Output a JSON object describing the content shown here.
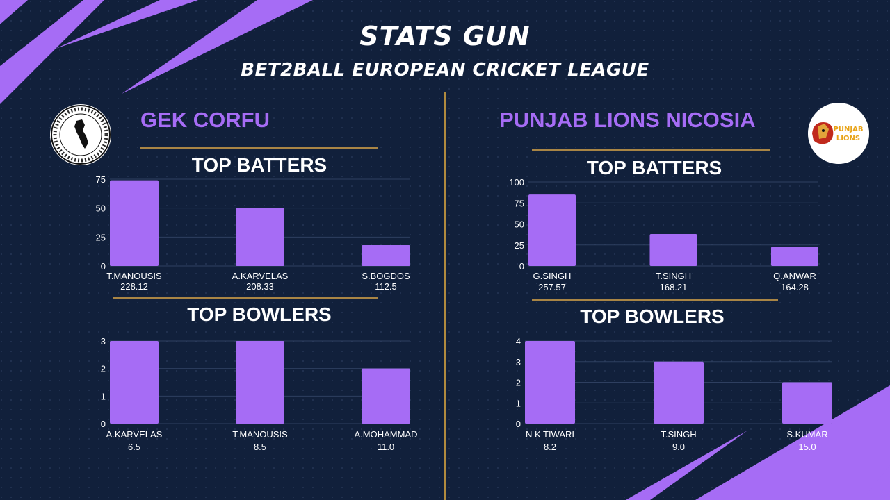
{
  "header": {
    "title": "STATS GUN",
    "subtitle": "BET2BALL EUROPEAN CRICKET LEAGUE"
  },
  "colors": {
    "background": "#11203b",
    "accent": "#a66cf5",
    "bar": "#a66cf5",
    "gold_line": "#a98545",
    "text": "#ffffff"
  },
  "teams": [
    {
      "name": "GEK CORFU",
      "logo": "gek-corfu-logo",
      "logo_text": "ΓΥΜΝΑΣΤΙΚΗ ΕΤΑΙΡΕΙΑ ΚΕΡΚΥΡΑΣ 1893"
    },
    {
      "name": "PUNJAB LIONS NICOSIA",
      "logo": "punjab-lions-logo",
      "logo_text": "PUNJAB LIONS"
    }
  ],
  "chart_data": [
    {
      "type": "bar",
      "title": "TOP BATTERS",
      "team": "GEK CORFU",
      "categories": [
        "T.MANOUSIS",
        "A.KARVELAS",
        "S.BOGDOS"
      ],
      "values": [
        74,
        50,
        18
      ],
      "sublabels": [
        "228.12",
        "208.33",
        "112.5"
      ],
      "yticks": [
        0,
        25,
        50,
        75
      ],
      "ylim": [
        0,
        75
      ],
      "grid": true
    },
    {
      "type": "bar",
      "title": "TOP BOWLERS",
      "team": "GEK CORFU",
      "categories": [
        "A.KARVELAS",
        "T.MANOUSIS",
        "A.MOHAMMAD"
      ],
      "values": [
        3,
        3,
        2
      ],
      "sublabels": [
        "6.5",
        "8.5",
        "11.0"
      ],
      "yticks": [
        0,
        1,
        2,
        3
      ],
      "ylim": [
        0,
        3
      ],
      "grid": true
    },
    {
      "type": "bar",
      "title": "TOP BATTERS",
      "team": "PUNJAB LIONS NICOSIA",
      "categories": [
        "G.SINGH",
        "T.SINGH",
        "Q.ANWAR"
      ],
      "values": [
        85,
        38,
        23
      ],
      "sublabels": [
        "257.57",
        "168.21",
        "164.28"
      ],
      "yticks": [
        0,
        25,
        50,
        75,
        100
      ],
      "ylim": [
        0,
        100
      ],
      "grid": true
    },
    {
      "type": "bar",
      "title": "TOP BOWLERS",
      "team": "PUNJAB LIONS NICOSIA",
      "categories": [
        "N K TIWARI",
        "T.SINGH",
        "S.KUMAR"
      ],
      "values": [
        4,
        3,
        2
      ],
      "sublabels": [
        "8.2",
        "9.0",
        "15.0"
      ],
      "yticks": [
        0,
        1,
        2,
        3,
        4
      ],
      "ylim": [
        0,
        4
      ],
      "grid": true
    }
  ]
}
